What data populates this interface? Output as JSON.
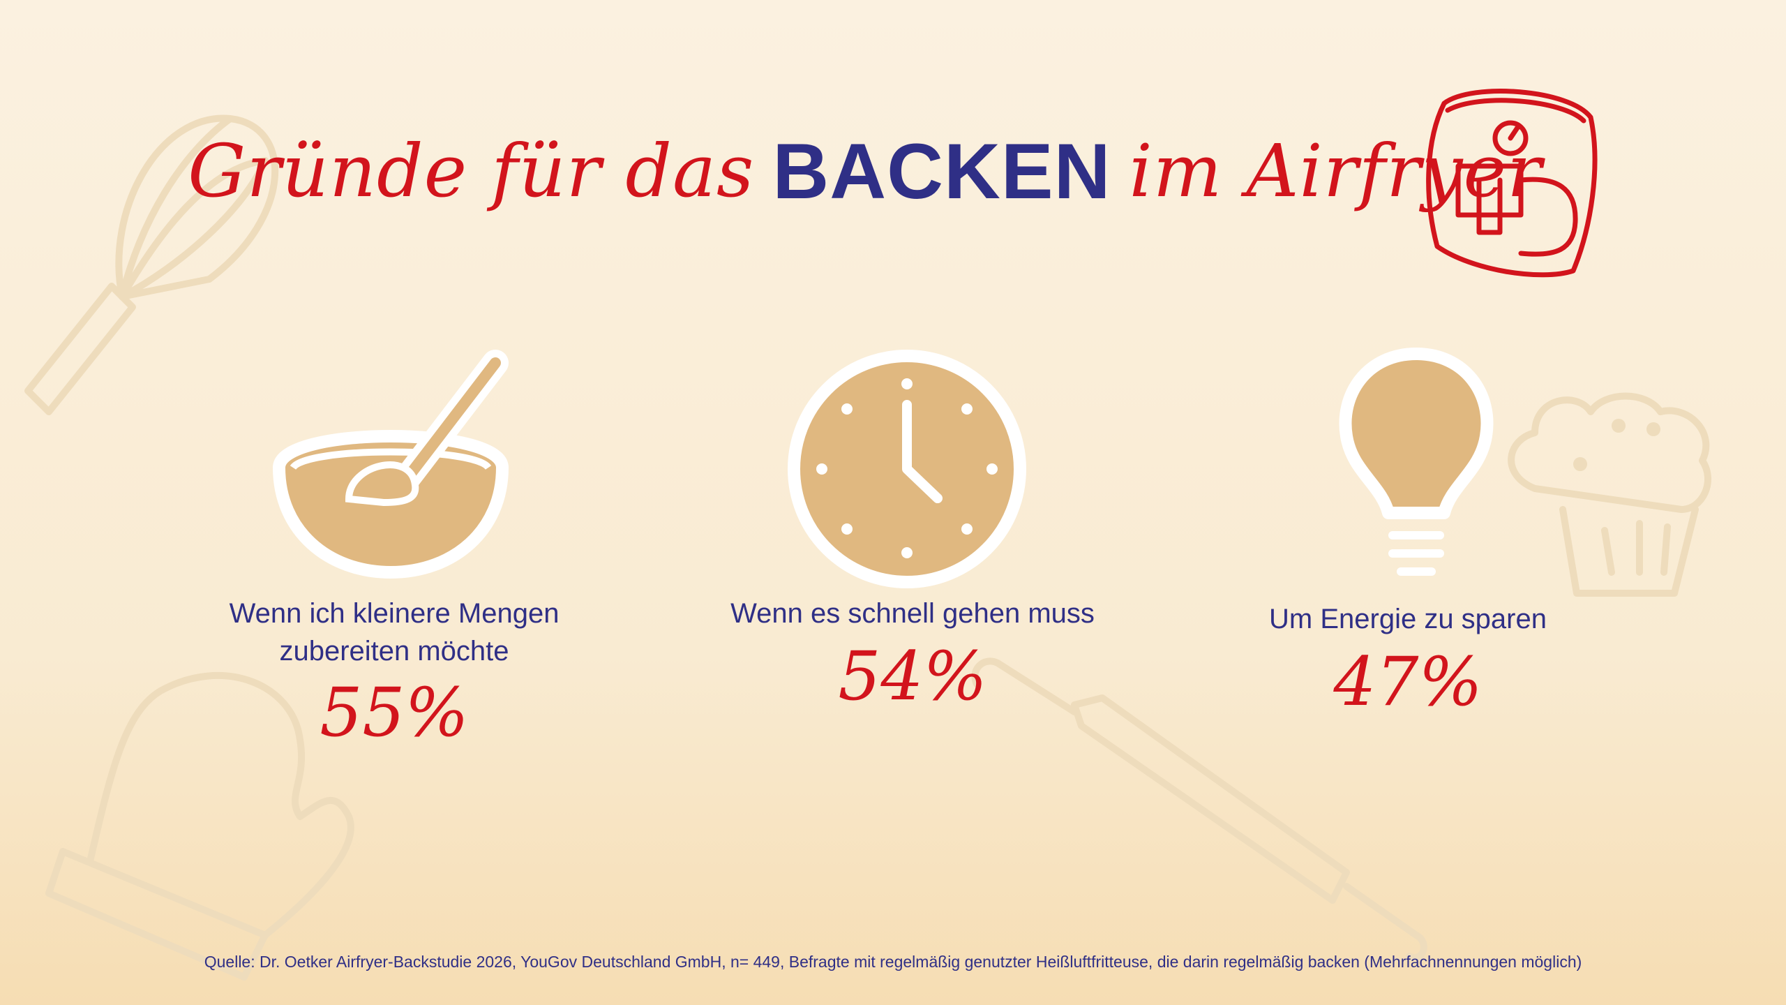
{
  "title": {
    "part1": "Gründe für das",
    "part2": "BACKEN",
    "part3": "im Airfryer"
  },
  "colors": {
    "accent_red": "#d2141c",
    "accent_navy": "#2f2f86",
    "icon_fill": "#e0b880",
    "background": "#fbf1e0"
  },
  "chart_data": {
    "type": "table",
    "categories": [
      "Wenn ich kleinere Mengen zubereiten möchte",
      "Wenn es schnell gehen muss",
      "Um Energie zu sparen"
    ],
    "values": [
      55,
      54,
      47
    ],
    "value_labels": [
      "55%",
      "54%",
      "47%"
    ],
    "icons": [
      "mixing-bowl-icon",
      "clock-icon",
      "light-bulb-icon"
    ]
  },
  "items": [
    {
      "label_line1": "Wenn ich kleinere Mengen",
      "label_line2": "zubereiten möchte",
      "value": "55%"
    },
    {
      "label_line1": "Wenn es schnell gehen muss",
      "value": "54%"
    },
    {
      "label_line1": "Um Energie zu sparen",
      "value": "47%"
    }
  ],
  "source": "Quelle: Dr. Oetker Airfryer-Backstudie 2026, YouGov Deutschland GmbH, n= 449, Befragte mit regelmäßig genutzter Heißluftfritteuse, die darin regelmäßig backen (Mehrfachnennungen möglich)"
}
